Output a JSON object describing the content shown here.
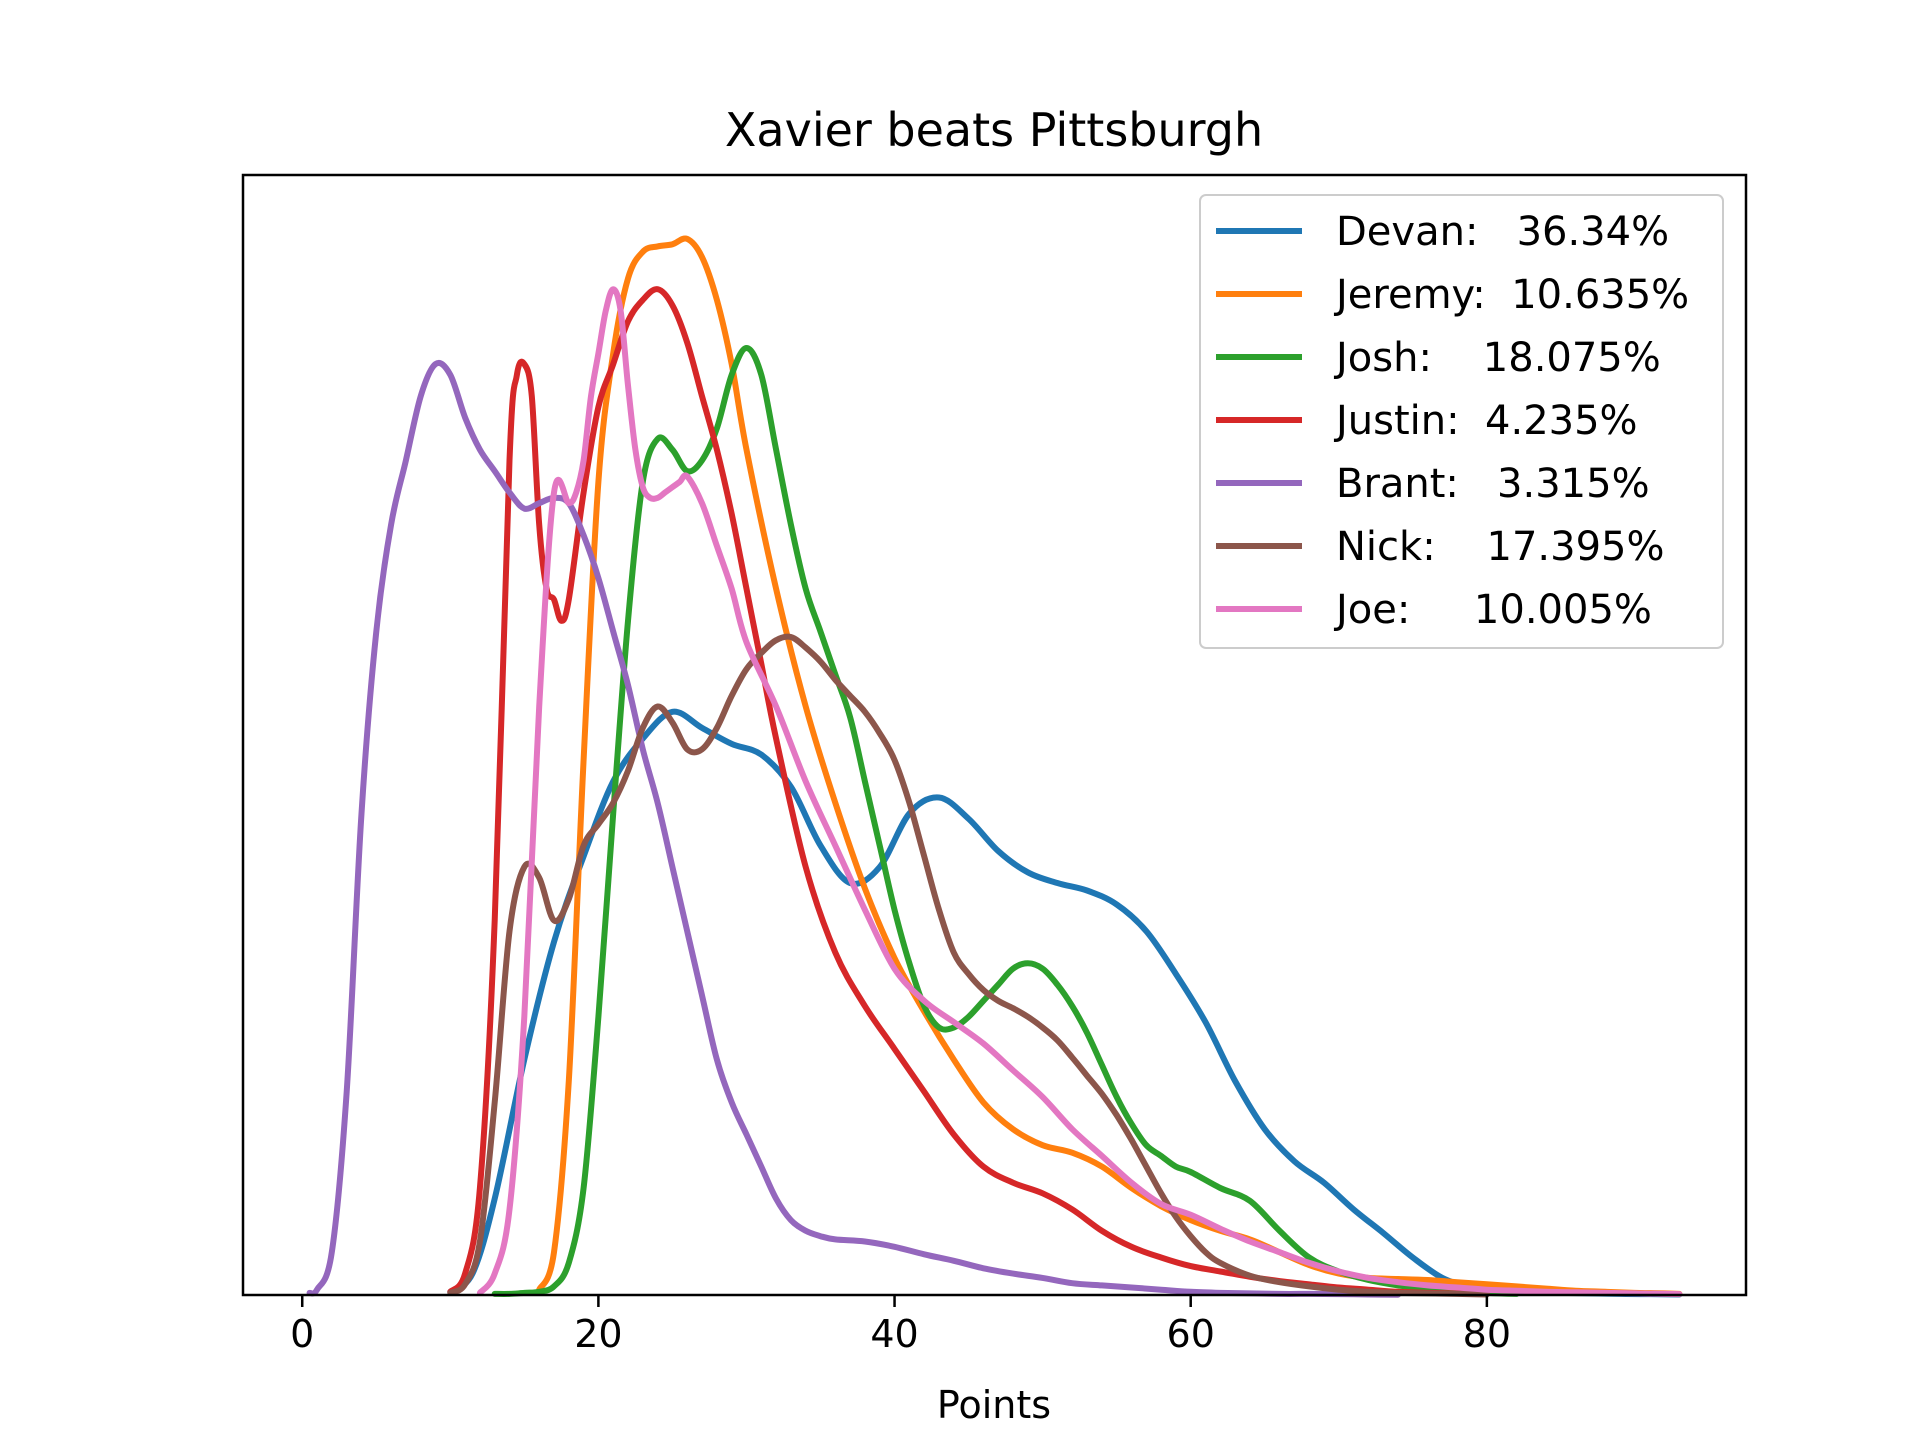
{
  "chart_data": {
    "type": "line",
    "title": "Xavier beats Pittsburgh",
    "xlabel": "Points",
    "ylabel": "",
    "xlim": [
      -4,
      97.5
    ],
    "ylim": [
      0,
      1
    ],
    "xticks": [
      0,
      20,
      40,
      60,
      80
    ],
    "yticks_visible": false,
    "grid": false,
    "legend_position": "top-right",
    "series": [
      {
        "name": "Devan:   36.34%",
        "color": "#1f77b4",
        "x": [
          10,
          11.5,
          13,
          15,
          17,
          19,
          21,
          23,
          25,
          27,
          29,
          31,
          33,
          35,
          37,
          39,
          41,
          43,
          45,
          47,
          49,
          51,
          53,
          55,
          57,
          59,
          61,
          63,
          65,
          67,
          69,
          71,
          73,
          75,
          77,
          79,
          81,
          83,
          85,
          87,
          89,
          91,
          93
        ],
        "y": [
          0.003,
          0.02,
          0.09,
          0.22,
          0.33,
          0.41,
          0.48,
          0.52,
          0.545,
          0.53,
          0.515,
          0.505,
          0.475,
          0.42,
          0.385,
          0.4,
          0.45,
          0.465,
          0.445,
          0.415,
          0.395,
          0.385,
          0.378,
          0.365,
          0.34,
          0.3,
          0.255,
          0.2,
          0.155,
          0.125,
          0.105,
          0.08,
          0.058,
          0.035,
          0.016,
          0.007,
          0.004,
          0.003,
          0.002,
          0.0015,
          0.001,
          0.0008,
          0.0005
        ]
      },
      {
        "name": "Jeremy:  10.635%",
        "color": "#ff7f0e",
        "x": [
          16,
          17,
          18,
          19,
          20,
          21,
          22,
          23,
          24,
          25,
          26,
          27,
          28,
          29,
          30,
          32,
          34,
          36,
          38,
          40,
          42,
          44,
          46,
          48,
          50,
          52,
          54,
          56,
          58,
          60,
          62,
          64,
          66,
          68,
          70,
          72,
          74,
          76,
          78,
          80,
          82,
          84,
          86,
          88,
          90,
          92,
          93
        ],
        "y": [
          0.005,
          0.04,
          0.2,
          0.5,
          0.76,
          0.88,
          0.95,
          0.975,
          0.98,
          0.982,
          0.987,
          0.97,
          0.93,
          0.87,
          0.79,
          0.66,
          0.55,
          0.46,
          0.38,
          0.315,
          0.265,
          0.22,
          0.18,
          0.155,
          0.14,
          0.133,
          0.12,
          0.1,
          0.083,
          0.07,
          0.06,
          0.052,
          0.04,
          0.028,
          0.02,
          0.016,
          0.015,
          0.014,
          0.012,
          0.01,
          0.008,
          0.006,
          0.004,
          0.003,
          0.002,
          0.0015,
          0.001
        ]
      },
      {
        "name": "Josh:    18.075%",
        "color": "#2ca02c",
        "x": [
          13,
          14,
          15,
          16,
          17,
          18,
          19,
          20,
          21,
          22,
          23,
          24,
          25,
          26,
          27,
          28,
          29,
          30,
          31,
          32,
          33,
          34,
          35,
          36,
          37,
          38,
          39,
          40,
          41,
          42,
          43,
          44,
          45,
          46,
          47,
          48,
          49,
          50,
          51,
          52,
          53,
          54,
          55,
          56,
          57,
          58,
          59,
          60,
          62,
          64,
          66,
          68,
          70,
          72,
          74,
          76,
          78,
          80,
          82
        ],
        "y": [
          0.001,
          0.001,
          0.002,
          0.003,
          0.008,
          0.03,
          0.1,
          0.26,
          0.45,
          0.63,
          0.76,
          0.8,
          0.79,
          0.77,
          0.78,
          0.81,
          0.86,
          0.885,
          0.86,
          0.79,
          0.72,
          0.66,
          0.62,
          0.58,
          0.54,
          0.48,
          0.42,
          0.36,
          0.31,
          0.27,
          0.25,
          0.25,
          0.26,
          0.275,
          0.29,
          0.305,
          0.31,
          0.305,
          0.29,
          0.27,
          0.245,
          0.215,
          0.185,
          0.16,
          0.14,
          0.13,
          0.12,
          0.115,
          0.1,
          0.088,
          0.06,
          0.035,
          0.022,
          0.014,
          0.009,
          0.006,
          0.004,
          0.002,
          0.001
        ]
      },
      {
        "name": "Justin:  4.235%",
        "color": "#d62728",
        "x": [
          10,
          11,
          12,
          13,
          14,
          14.5,
          15,
          15.5,
          16,
          16.5,
          17,
          17.5,
          18,
          19,
          20,
          21,
          22,
          23,
          24,
          25,
          26,
          27,
          28,
          29,
          30,
          31,
          32,
          34,
          36,
          38,
          40,
          42,
          44,
          46,
          48,
          50,
          52,
          54,
          56,
          58,
          60,
          62,
          64,
          66,
          68,
          70,
          72,
          74,
          76,
          78,
          80
        ],
        "y": [
          0.003,
          0.02,
          0.1,
          0.35,
          0.78,
          0.86,
          0.87,
          0.84,
          0.72,
          0.66,
          0.65,
          0.63,
          0.65,
          0.75,
          0.83,
          0.87,
          0.91,
          0.93,
          0.94,
          0.925,
          0.89,
          0.84,
          0.79,
          0.73,
          0.66,
          0.59,
          0.52,
          0.4,
          0.32,
          0.27,
          0.23,
          0.19,
          0.15,
          0.12,
          0.105,
          0.095,
          0.08,
          0.06,
          0.045,
          0.035,
          0.027,
          0.022,
          0.017,
          0.013,
          0.01,
          0.007,
          0.005,
          0.003,
          0.002,
          0.0015,
          0.001
        ]
      },
      {
        "name": "Brant:   3.315%",
        "color": "#9467bd",
        "x": [
          0.5,
          1,
          2,
          3,
          4,
          5,
          6,
          7,
          8,
          9,
          10,
          11,
          12,
          13,
          14,
          15,
          16,
          17,
          18,
          19,
          20,
          21,
          22,
          23,
          24,
          25,
          26,
          27,
          28,
          29,
          30,
          31,
          32,
          33,
          34,
          35,
          36,
          38,
          40,
          42,
          44,
          46,
          48,
          50,
          52,
          54,
          56,
          58,
          60,
          62,
          64,
          66,
          68,
          70,
          72,
          74
        ],
        "y": [
          0.002,
          0.005,
          0.04,
          0.19,
          0.45,
          0.62,
          0.72,
          0.78,
          0.84,
          0.87,
          0.86,
          0.82,
          0.79,
          0.77,
          0.75,
          0.735,
          0.74,
          0.745,
          0.74,
          0.71,
          0.67,
          0.62,
          0.57,
          0.51,
          0.46,
          0.4,
          0.34,
          0.28,
          0.22,
          0.18,
          0.15,
          0.12,
          0.09,
          0.07,
          0.06,
          0.055,
          0.052,
          0.05,
          0.045,
          0.038,
          0.032,
          0.025,
          0.02,
          0.016,
          0.011,
          0.009,
          0.007,
          0.005,
          0.003,
          0.002,
          0.0015,
          0.001,
          0.001,
          0.0008,
          0.0005,
          0.0003
        ]
      },
      {
        "name": "Nick:    17.395%",
        "color": "#8c564b",
        "x": [
          10,
          11,
          12,
          13,
          14,
          15,
          16,
          17,
          18,
          19,
          20,
          21,
          22,
          23,
          24,
          25,
          26,
          27,
          28,
          29,
          30,
          31,
          32,
          33,
          34,
          35,
          36,
          37,
          38,
          39,
          40,
          41,
          42,
          43,
          44,
          45,
          46,
          47,
          48,
          49,
          50,
          51,
          52,
          53,
          54,
          55,
          56,
          57,
          58,
          59,
          60,
          61,
          62,
          64,
          66,
          68,
          70,
          72,
          74,
          76,
          78,
          80
        ],
        "y": [
          0.002,
          0.01,
          0.05,
          0.18,
          0.34,
          0.4,
          0.39,
          0.35,
          0.37,
          0.42,
          0.44,
          0.46,
          0.49,
          0.53,
          0.55,
          0.535,
          0.51,
          0.51,
          0.53,
          0.56,
          0.585,
          0.6,
          0.612,
          0.615,
          0.605,
          0.592,
          0.575,
          0.56,
          0.545,
          0.525,
          0.5,
          0.46,
          0.41,
          0.36,
          0.32,
          0.3,
          0.285,
          0.275,
          0.268,
          0.26,
          0.25,
          0.238,
          0.222,
          0.205,
          0.188,
          0.168,
          0.145,
          0.12,
          0.095,
          0.073,
          0.055,
          0.04,
          0.03,
          0.018,
          0.012,
          0.008,
          0.005,
          0.003,
          0.002,
          0.0015,
          0.001,
          0.0005
        ]
      },
      {
        "name": "Joe:     10.005%",
        "color": "#e377c2",
        "x": [
          12,
          13,
          14,
          15,
          16,
          17,
          18,
          18.5,
          19,
          19.5,
          20,
          20.5,
          21,
          21.5,
          22,
          22.5,
          23,
          23.5,
          24,
          24.5,
          25,
          25.5,
          26,
          27,
          28,
          29,
          30,
          32,
          34,
          36,
          38,
          40,
          42,
          44,
          46,
          48,
          50,
          52,
          54,
          56,
          58,
          60,
          62,
          64,
          66,
          68,
          70,
          72,
          74,
          76,
          78,
          80,
          82,
          84,
          86,
          88,
          90,
          92,
          93
        ],
        "y": [
          0.002,
          0.02,
          0.08,
          0.26,
          0.55,
          0.75,
          0.74,
          0.75,
          0.78,
          0.84,
          0.88,
          0.92,
          0.94,
          0.92,
          0.85,
          0.79,
          0.755,
          0.745,
          0.745,
          0.75,
          0.755,
          0.76,
          0.765,
          0.74,
          0.7,
          0.66,
          0.61,
          0.55,
          0.48,
          0.42,
          0.36,
          0.305,
          0.275,
          0.255,
          0.235,
          0.21,
          0.185,
          0.155,
          0.13,
          0.105,
          0.085,
          0.075,
          0.062,
          0.05,
          0.04,
          0.03,
          0.022,
          0.016,
          0.012,
          0.009,
          0.007,
          0.005,
          0.004,
          0.003,
          0.0025,
          0.002,
          0.0015,
          0.001,
          0.0008
        ]
      }
    ]
  }
}
